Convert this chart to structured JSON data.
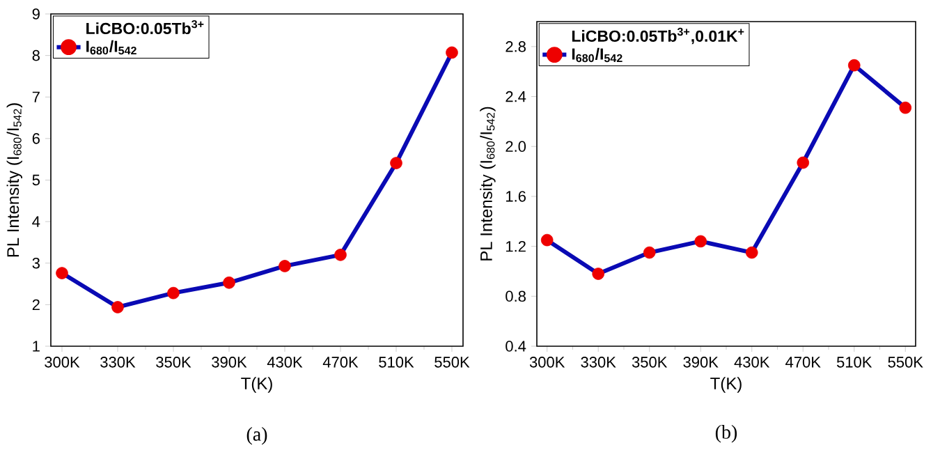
{
  "chart_data": [
    {
      "type": "line",
      "xlabel": "T(K)",
      "ylabel": "PL Intensity (I$_{680}$/I$_{542}$)",
      "legend_title": "LiCBO:0.05Tb$^{3+}$",
      "annotations": [
        "(a)"
      ],
      "categories": [
        "300K",
        "330K",
        "350K",
        "390K",
        "430K",
        "470K",
        "510K",
        "550K"
      ],
      "series": [
        {
          "name": "I$_{680}$/I$_{542}$",
          "color": "#0a0ab4",
          "colors": [
            "#ee0000",
            "#ee0000",
            "#ee0000",
            "#ee0000",
            "#ee0000",
            "#ee0000",
            "#ee0000",
            "#ee0000"
          ],
          "values": [
            2.76,
            1.94,
            2.28,
            2.53,
            2.93,
            3.2,
            5.41,
            8.07
          ]
        }
      ],
      "ylim": [
        1,
        9
      ],
      "yticks": [
        1,
        2,
        3,
        4,
        5,
        6,
        7,
        8,
        9
      ],
      "legend": "top left",
      "marker": "circle",
      "line_style": "solid"
    },
    {
      "type": "line",
      "xlabel": "T(K)",
      "ylabel": "PL Intensity (I$_{680}$/I$_{542}$)",
      "legend_title": "LiCBO:0.05Tb$^{3+}$,0.01K$^{+}$",
      "annotations": [
        "(b)"
      ],
      "categories": [
        "300K",
        "330K",
        "350K",
        "390K",
        "430K",
        "470K",
        "510K",
        "550K"
      ],
      "series": [
        {
          "name": "I$_{680}$/I$_{542}$",
          "color": "#0a0ab4",
          "colors": [
            "#ee0000",
            "#ee0000",
            "#ee0000",
            "#ee0000",
            "#ee0000",
            "#ee0000",
            "#ee0000",
            "#ee0000"
          ],
          "values": [
            1.25,
            0.98,
            1.15,
            1.24,
            1.15,
            1.87,
            2.65,
            2.31
          ]
        }
      ],
      "ylim": [
        0.4,
        3.0
      ],
      "yticks": [
        {
          "value": 0.4,
          "label": "0.4"
        },
        {
          "value": 0.8,
          "label": "0.8"
        },
        {
          "value": 1.2,
          "label": "1.2"
        },
        {
          "value": 1.6,
          "label": "1.6"
        },
        {
          "value": 2.0,
          "label": "2.0"
        },
        {
          "value": 2.4,
          "label": "2.4"
        },
        {
          "value": 2.8,
          "label": "2.8"
        }
      ],
      "legend": "top left",
      "marker": "circle",
      "line_style": "solid"
    }
  ]
}
